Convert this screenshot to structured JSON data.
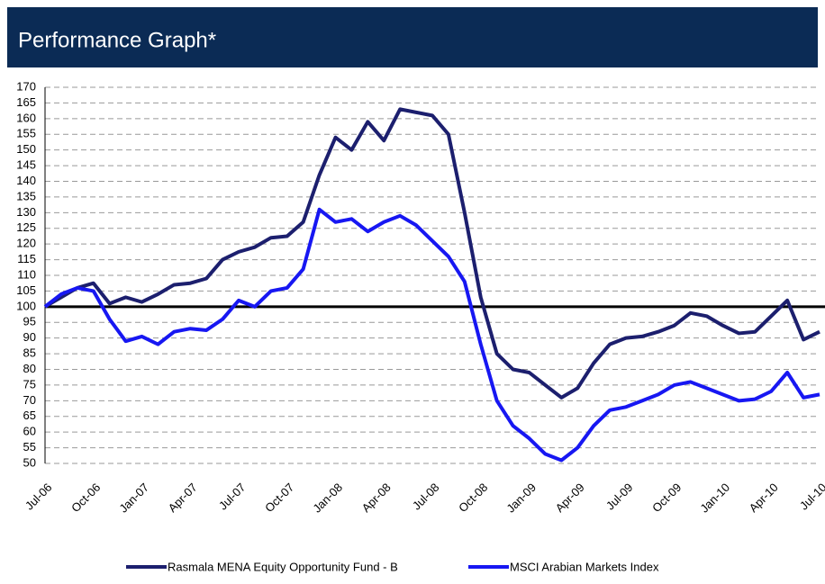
{
  "chart_data": {
    "type": "line",
    "title": "Performance Graph*",
    "categories": [
      "Jul-06",
      null,
      null,
      "Oct-06",
      null,
      null,
      "Jan-07",
      null,
      null,
      "Apr-07",
      null,
      null,
      "Jul-07",
      null,
      null,
      "Oct-07",
      null,
      null,
      "Jan-08",
      null,
      null,
      "Apr-08",
      null,
      null,
      "Jul-08",
      null,
      null,
      "Oct-08",
      null,
      null,
      "Jan-09",
      null,
      null,
      "Apr-09",
      null,
      null,
      "Jul-09",
      null,
      null,
      "Oct-09",
      null,
      null,
      "Jan-10",
      null,
      null,
      "Apr-10",
      null,
      null,
      "Jul-10"
    ],
    "series": [
      {
        "name": "Rasmala MENA Equity Opportunity Fund - B",
        "color": "#1c1f6e",
        "values": [
          100,
          103,
          106,
          107.5,
          101,
          103,
          101.5,
          104,
          107,
          107.5,
          109,
          115,
          117.5,
          119,
          122,
          122.5,
          127,
          142,
          154,
          150,
          159,
          153,
          163,
          162,
          161,
          155,
          130,
          103,
          85,
          80,
          79,
          75,
          71,
          74,
          82,
          88,
          90,
          90.5,
          92,
          94,
          98,
          97,
          94,
          91.5,
          92,
          97,
          102,
          89.5,
          92
        ]
      },
      {
        "name": "MSCI Arabian Markets Index",
        "color": "#1717f2",
        "values": [
          100,
          104,
          106,
          105,
          96,
          89,
          90.5,
          88,
          92,
          93,
          92.5,
          96,
          102,
          100,
          105,
          106,
          112,
          131,
          127,
          128,
          124,
          127,
          129,
          126,
          121,
          116,
          108,
          88,
          70,
          62,
          58,
          53,
          51,
          55,
          62,
          67,
          68,
          70,
          72,
          75,
          76,
          74,
          72,
          70,
          70.5,
          73,
          79,
          71,
          72
        ]
      }
    ],
    "ylim": [
      50,
      170
    ],
    "yticks": [
      50,
      55,
      60,
      65,
      70,
      75,
      80,
      85,
      90,
      95,
      100,
      105,
      110,
      115,
      120,
      125,
      130,
      135,
      140,
      145,
      150,
      155,
      160,
      165,
      170
    ],
    "grid": true,
    "reference_line": 100,
    "legend": "bottom"
  }
}
